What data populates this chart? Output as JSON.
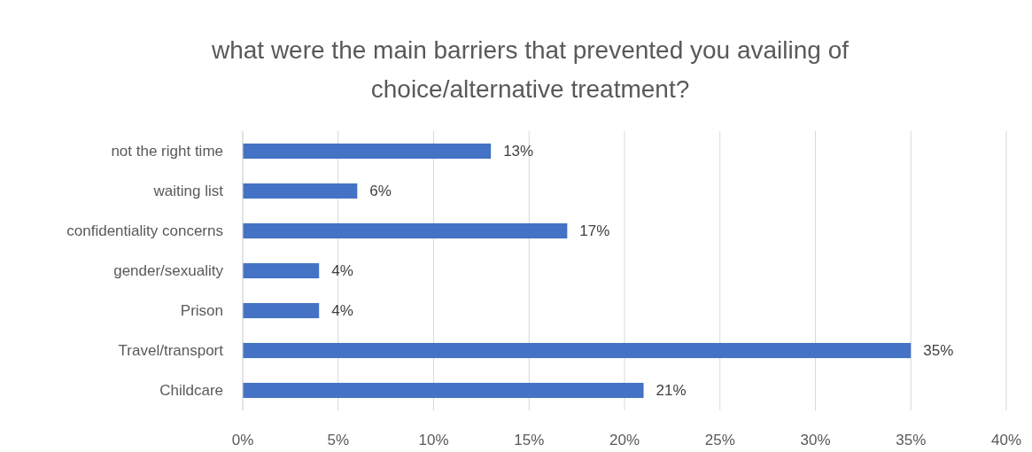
{
  "chart_data": {
    "type": "bar",
    "orientation": "horizontal",
    "title": "what were the main barriers that prevented you availing of choice/alternative treatment?",
    "categories": [
      "not the right time",
      "waiting list",
      "confidentiality concerns",
      "gender/sexuality",
      "Prison",
      "Travel/transport",
      "Childcare"
    ],
    "values": [
      13,
      6,
      17,
      4,
      4,
      35,
      21
    ],
    "value_labels": [
      "13%",
      "6%",
      "17%",
      "4%",
      "4%",
      "35%",
      "21%"
    ],
    "color": "#4472c4",
    "xlim": [
      0,
      40
    ],
    "xticks": [
      {
        "value": 0,
        "label": "0%"
      },
      {
        "value": 5,
        "label": "5%"
      },
      {
        "value": 10,
        "label": "10%"
      },
      {
        "value": 15,
        "label": "15%"
      },
      {
        "value": 20,
        "label": "20%"
      },
      {
        "value": 25,
        "label": "25%"
      },
      {
        "value": 30,
        "label": "30%"
      },
      {
        "value": 35,
        "label": "35%"
      },
      {
        "value": 40,
        "label": "40%"
      }
    ],
    "grid": "x"
  }
}
